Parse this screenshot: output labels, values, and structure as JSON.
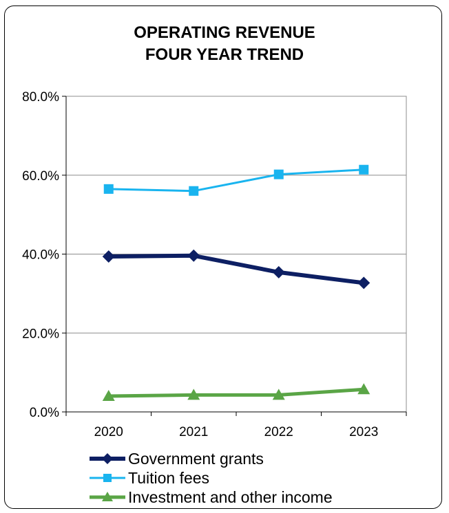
{
  "chart_data": {
    "type": "line",
    "title_line1": "OPERATING REVENUE",
    "title_line2": "FOUR YEAR TREND",
    "x": [
      "2020",
      "2021",
      "2022",
      "2023"
    ],
    "ylim": [
      0,
      80
    ],
    "yticks": [
      "0.0%",
      "20.0%",
      "40.0%",
      "60.0%",
      "80.0%"
    ],
    "grid": true,
    "legend_position": "bottom",
    "series": [
      {
        "name": "Government grants",
        "values": [
          39.4,
          39.6,
          35.4,
          32.7
        ],
        "color": "#0d1f63",
        "marker": "diamond"
      },
      {
        "name": "Tuition fees",
        "values": [
          56.5,
          56.0,
          60.2,
          61.4
        ],
        "color": "#19b4ef",
        "marker": "square"
      },
      {
        "name": "Investment and other income",
        "values": [
          4.0,
          4.3,
          4.3,
          5.7
        ],
        "color": "#5aa546",
        "marker": "triangle"
      }
    ]
  }
}
